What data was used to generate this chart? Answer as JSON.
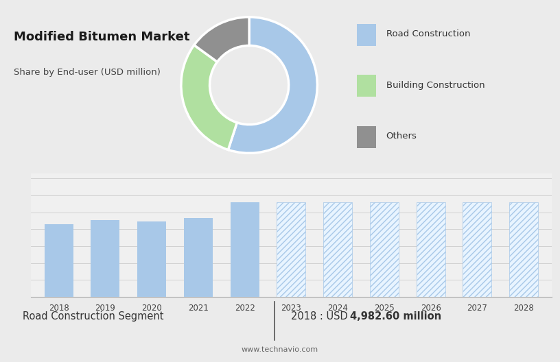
{
  "title": "Modified Bitumen Market",
  "subtitle": "Share by End-user (USD million)",
  "top_bg_color": "#d8d8d8",
  "bottom_bg_color": "#ebebeb",
  "pie_values": [
    55,
    30,
    15
  ],
  "pie_colors": [
    "#a8c8e8",
    "#b0e0a0",
    "#909090"
  ],
  "legend_labels": [
    "Road Construction",
    "Building Construction",
    "Others"
  ],
  "legend_colors": [
    "#a8c8e8",
    "#b0e0a0",
    "#909090"
  ],
  "bar_years_solid": [
    2018,
    2019,
    2020,
    2021,
    2022
  ],
  "bar_values_solid": [
    4.5,
    4.75,
    4.65,
    4.85,
    5.85
  ],
  "bar_years_hatched": [
    2023,
    2024,
    2025,
    2026,
    2027,
    2028
  ],
  "bar_values_hatched": [
    5.85,
    5.85,
    5.85,
    5.85,
    5.85,
    5.85
  ],
  "bar_color": "#a8c8e8",
  "hatch_pattern": "////",
  "footer_left": "Road Construction Segment",
  "footer_sep": "|",
  "footer_right_normal": "2018 : USD ",
  "footer_right_bold": "4,982.60 million",
  "footer_url": "www.technavio.com",
  "grid_color": "#cccccc",
  "bar_chart_bg": "#f0f0f0"
}
